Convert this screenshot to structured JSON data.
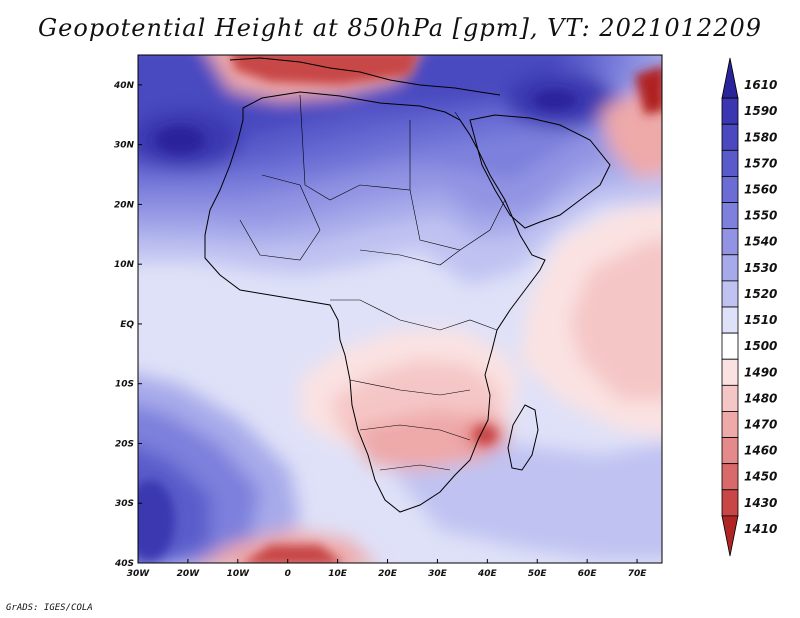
{
  "title": "Geopotential Height at 850hPa [gpm], VT: 2021012209",
  "credit": "GrADS: IGES/COLA",
  "map": {
    "lon_range": [
      -30,
      75
    ],
    "lat_range": [
      -40,
      45
    ],
    "lon_ticks": [
      {
        "value": -30,
        "label": "30W"
      },
      {
        "value": -20,
        "label": "20W"
      },
      {
        "value": -10,
        "label": "10W"
      },
      {
        "value": 0,
        "label": "0"
      },
      {
        "value": 10,
        "label": "10E"
      },
      {
        "value": 20,
        "label": "20E"
      },
      {
        "value": 30,
        "label": "30E"
      },
      {
        "value": 40,
        "label": "40E"
      },
      {
        "value": 50,
        "label": "50E"
      },
      {
        "value": 60,
        "label": "60E"
      },
      {
        "value": 70,
        "label": "70E"
      }
    ],
    "lat_ticks": [
      {
        "value": 40,
        "label": "40N"
      },
      {
        "value": 30,
        "label": "30N"
      },
      {
        "value": 20,
        "label": "20N"
      },
      {
        "value": 10,
        "label": "10N"
      },
      {
        "value": 0,
        "label": "EQ"
      },
      {
        "value": -10,
        "label": "10S"
      },
      {
        "value": -20,
        "label": "20S"
      },
      {
        "value": -30,
        "label": "30S"
      },
      {
        "value": -40,
        "label": "40S"
      }
    ]
  },
  "legend": {
    "levels": [
      "1610",
      "1590",
      "1580",
      "1570",
      "1560",
      "1550",
      "1540",
      "1530",
      "1520",
      "1510",
      "1500",
      "1490",
      "1480",
      "1470",
      "1460",
      "1450",
      "1430",
      "1410"
    ],
    "colors": [
      "#2a249a",
      "#3a37b0",
      "#4a49c0",
      "#5a5bcb",
      "#6b6dd4",
      "#7d80dc",
      "#9294e3",
      "#a7aaea",
      "#c0c3f1",
      "#dfe1f8",
      "#ffffff",
      "#fbe2e2",
      "#f5c6c6",
      "#eea9a9",
      "#e58a8a",
      "#d96a6a",
      "#c84646",
      "#b02424"
    ]
  },
  "fields": {
    "colors": {
      "h1610": "#2a249a",
      "h1590": "#3a37b0",
      "h1580": "#4a49c0",
      "h1570": "#5a5bcb",
      "h1560": "#6b6dd4",
      "h1550": "#7d80dc",
      "h1540": "#9294e3",
      "h1530": "#a7aaea",
      "h1520": "#c0c3f1",
      "h1510": "#dfe1f8",
      "h1500": "#ffffff",
      "h1490": "#fbe2e2",
      "h1480": "#f5c6c6",
      "h1470": "#eea9a9",
      "h1460": "#e58a8a",
      "h1430": "#c84646",
      "h1410": "#b02424"
    }
  }
}
